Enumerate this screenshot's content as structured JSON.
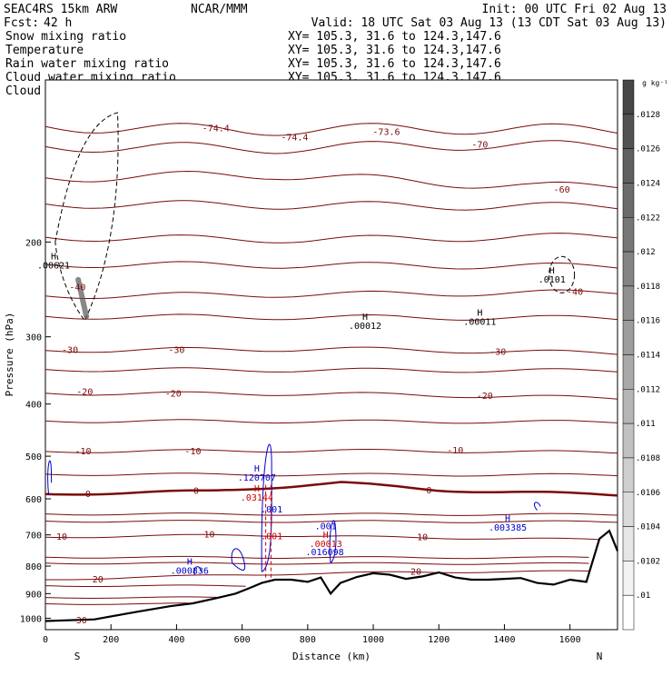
{
  "header": {
    "model": "SEAC4RS 15km ARW",
    "org": "NCAR/MMM",
    "init": "Init: 00 UTC Fri 02 Aug 13",
    "fcst_label": "Fcst:",
    "fcst_value": "42 h",
    "valid": "Valid: 18 UTC Sat 03 Aug 13 (13 CDT Sat 03 Aug 13)",
    "fields": [
      {
        "name": "Snow mixing ratio",
        "xy": "XY= 105.3, 31.6 to 124.3,147.6",
        "color": "#000000"
      },
      {
        "name": "Temperature",
        "xy": "XY= 105.3, 31.6 to 124.3,147.6",
        "color": "#cc0000"
      },
      {
        "name": "Rain water mixing ratio",
        "xy": "XY= 105.3, 31.6 to 124.3,147.6",
        "color": "#cc0000"
      },
      {
        "name": "Cloud water mixing ratio",
        "xy": "XY= 105.3, 31.6 to 124.3,147.6",
        "color": "#0000cc"
      },
      {
        "name": "Cloud ice mixing ratio",
        "xy": "XY= 105.3, 31.6 to 124.3,147.6",
        "color": "#000000"
      }
    ]
  },
  "chart_data": {
    "type": "cross-section",
    "xlabel": "Distance (km)",
    "ylabel": "Pressure (hPa)",
    "xlim": [
      0,
      1745
    ],
    "ylim": [
      100,
      1050
    ],
    "y_log_scale": true,
    "x_ticks": [
      0,
      200,
      400,
      600,
      800,
      1000,
      1200,
      1400,
      1600
    ],
    "y_ticks": [
      200,
      300,
      400,
      500,
      600,
      700,
      800,
      900,
      1000
    ],
    "x_end_labels": {
      "left": "S",
      "right": "N"
    },
    "colorbar": {
      "unit": "g kg⁻¹",
      "labels": [
        ".0128",
        ".0126",
        ".0124",
        ".0122",
        ".012",
        ".0118",
        ".0116",
        ".0114",
        ".0112",
        ".011",
        ".0108",
        ".0106",
        ".0104",
        ".0102",
        ".01"
      ]
    },
    "temperature_isotherms_C": [
      -74,
      -70,
      -60,
      -50,
      -40,
      -30,
      -20,
      -10,
      0,
      10,
      20,
      30
    ],
    "temperature_labels": [
      {
        "text": "-74.4",
        "x": 520,
        "p": 123
      },
      {
        "text": "-74.4",
        "x": 760,
        "p": 128
      },
      {
        "text": "-73.6",
        "x": 1040,
        "p": 125
      },
      {
        "text": "-70",
        "x": 1325,
        "p": 132
      },
      {
        "text": "-60",
        "x": 1575,
        "p": 160
      },
      {
        "text": "-40",
        "x": 98,
        "p": 243
      },
      {
        "text": "-40",
        "x": 1615,
        "p": 248
      },
      {
        "text": "-30",
        "x": 75,
        "p": 318
      },
      {
        "text": "-30",
        "x": 400,
        "p": 318
      },
      {
        "text": "-30",
        "x": 1380,
        "p": 320
      },
      {
        "text": "-20",
        "x": 120,
        "p": 380
      },
      {
        "text": "-20",
        "x": 390,
        "p": 383
      },
      {
        "text": "-20",
        "x": 1340,
        "p": 387
      },
      {
        "text": "-10",
        "x": 115,
        "p": 490
      },
      {
        "text": "-10",
        "x": 450,
        "p": 490
      },
      {
        "text": "-10",
        "x": 1250,
        "p": 488
      },
      {
        "text": "0",
        "x": 130,
        "p": 588
      },
      {
        "text": "0",
        "x": 460,
        "p": 581
      },
      {
        "text": "0",
        "x": 1170,
        "p": 579
      },
      {
        "text": "10",
        "x": 50,
        "p": 707
      },
      {
        "text": "10",
        "x": 500,
        "p": 700
      },
      {
        "text": "10",
        "x": 1150,
        "p": 708
      },
      {
        "text": "20",
        "x": 160,
        "p": 848
      },
      {
        "text": "20",
        "x": 1130,
        "p": 821
      },
      {
        "text": "30",
        "x": 110,
        "p": 1010
      }
    ],
    "maxima": [
      {
        "field": "Snow mixing ratio",
        "text": "H",
        "value": ".00621",
        "x": 25,
        "p": 224,
        "color": "#000000"
      },
      {
        "field": "Cloud ice mixing ratio",
        "text": "H",
        "value": ".00012",
        "x": 975,
        "p": 290,
        "color": "#000000"
      },
      {
        "field": "Cloud ice mixing ratio",
        "text": "H",
        "value": ".00011",
        "x": 1325,
        "p": 285,
        "color": "#000000"
      },
      {
        "field": "Cloud ice mixing ratio",
        "text": "H",
        "value": ".0101",
        "x": 1545,
        "p": 238,
        "color": "#000000"
      },
      {
        "field": "Cloud water mixing ratio",
        "text": "H",
        "value": ".120707",
        "x": 645,
        "p": 555,
        "color": "#0000cc"
      },
      {
        "field": "Rain water mixing ratio",
        "text": "H",
        "value": ".03144",
        "x": 645,
        "p": 605,
        "color": "#cc0000"
      },
      {
        "field": "Cloud water mixing ratio",
        "text": "",
        "value": ".001",
        "x": 690,
        "p": 636,
        "color": "#0000cc"
      },
      {
        "field": "Rain water mixing ratio",
        "text": "",
        "value": ".001",
        "x": 690,
        "p": 713,
        "color": "#cc0000"
      },
      {
        "field": "Cloud water mixing ratio",
        "text": "",
        "value": ".001",
        "x": 855,
        "p": 683,
        "color": "#0000cc"
      },
      {
        "field": "Rain water mixing ratio",
        "text": "H",
        "value": ".00013",
        "x": 855,
        "p": 737,
        "color": "#cc0000"
      },
      {
        "field": "Cloud water mixing ratio",
        "text": "",
        "value": ".016098",
        "x": 852,
        "p": 764,
        "color": "#0000cc"
      },
      {
        "field": "Cloud water mixing ratio",
        "text": "H",
        "value": ".003385",
        "x": 1410,
        "p": 688,
        "color": "#0000cc"
      },
      {
        "field": "Cloud water mixing ratio",
        "text": "H",
        "value": ".000836",
        "x": 440,
        "p": 826,
        "color": "#0000cc"
      }
    ],
    "terrain_surface_hPa": {
      "x": [
        0,
        150,
        250,
        300,
        380,
        450,
        520,
        580,
        620,
        660,
        700,
        750,
        800,
        840,
        870,
        900,
        950,
        1000,
        1050,
        1100,
        1150,
        1200,
        1250,
        1300,
        1350,
        1400,
        1450,
        1500,
        1550,
        1600,
        1650,
        1690,
        1720,
        1745
      ],
      "p": [
        1012,
        1005,
        980,
        968,
        950,
        938,
        918,
        900,
        880,
        860,
        848,
        848,
        856,
        840,
        900,
        860,
        838,
        825,
        830,
        845,
        836,
        822,
        840,
        848,
        848,
        845,
        842,
        860,
        866,
        848,
        856,
        712,
        688,
        750
      ]
    }
  }
}
